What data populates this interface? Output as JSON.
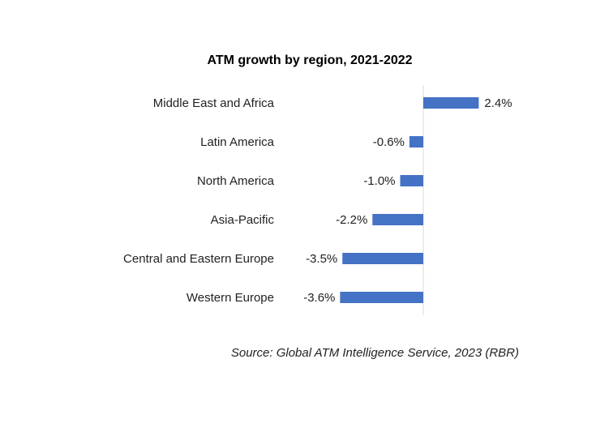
{
  "chart_data": {
    "type": "bar",
    "orientation": "horizontal",
    "title": "ATM growth by region, 2021-2022",
    "categories": [
      "Middle East and Africa",
      "Latin America",
      "North America",
      "Asia-Pacific",
      "Central and Eastern Europe",
      "Western Europe"
    ],
    "values": [
      2.4,
      -0.6,
      -1.0,
      -2.2,
      -3.5,
      -3.6
    ],
    "data_labels": [
      "2.4%",
      "-0.6%",
      "-1.0%",
      "-2.2%",
      "-3.5%",
      "-3.6%"
    ],
    "value_unit": "%",
    "xlim": [
      -4.0,
      4.0
    ],
    "grid": false,
    "legend": "none",
    "bar_color": "#4472C4",
    "axis_color": "#d9d9d9",
    "source": "Source: Global ATM Intelligence Service, 2023 (RBR)"
  }
}
